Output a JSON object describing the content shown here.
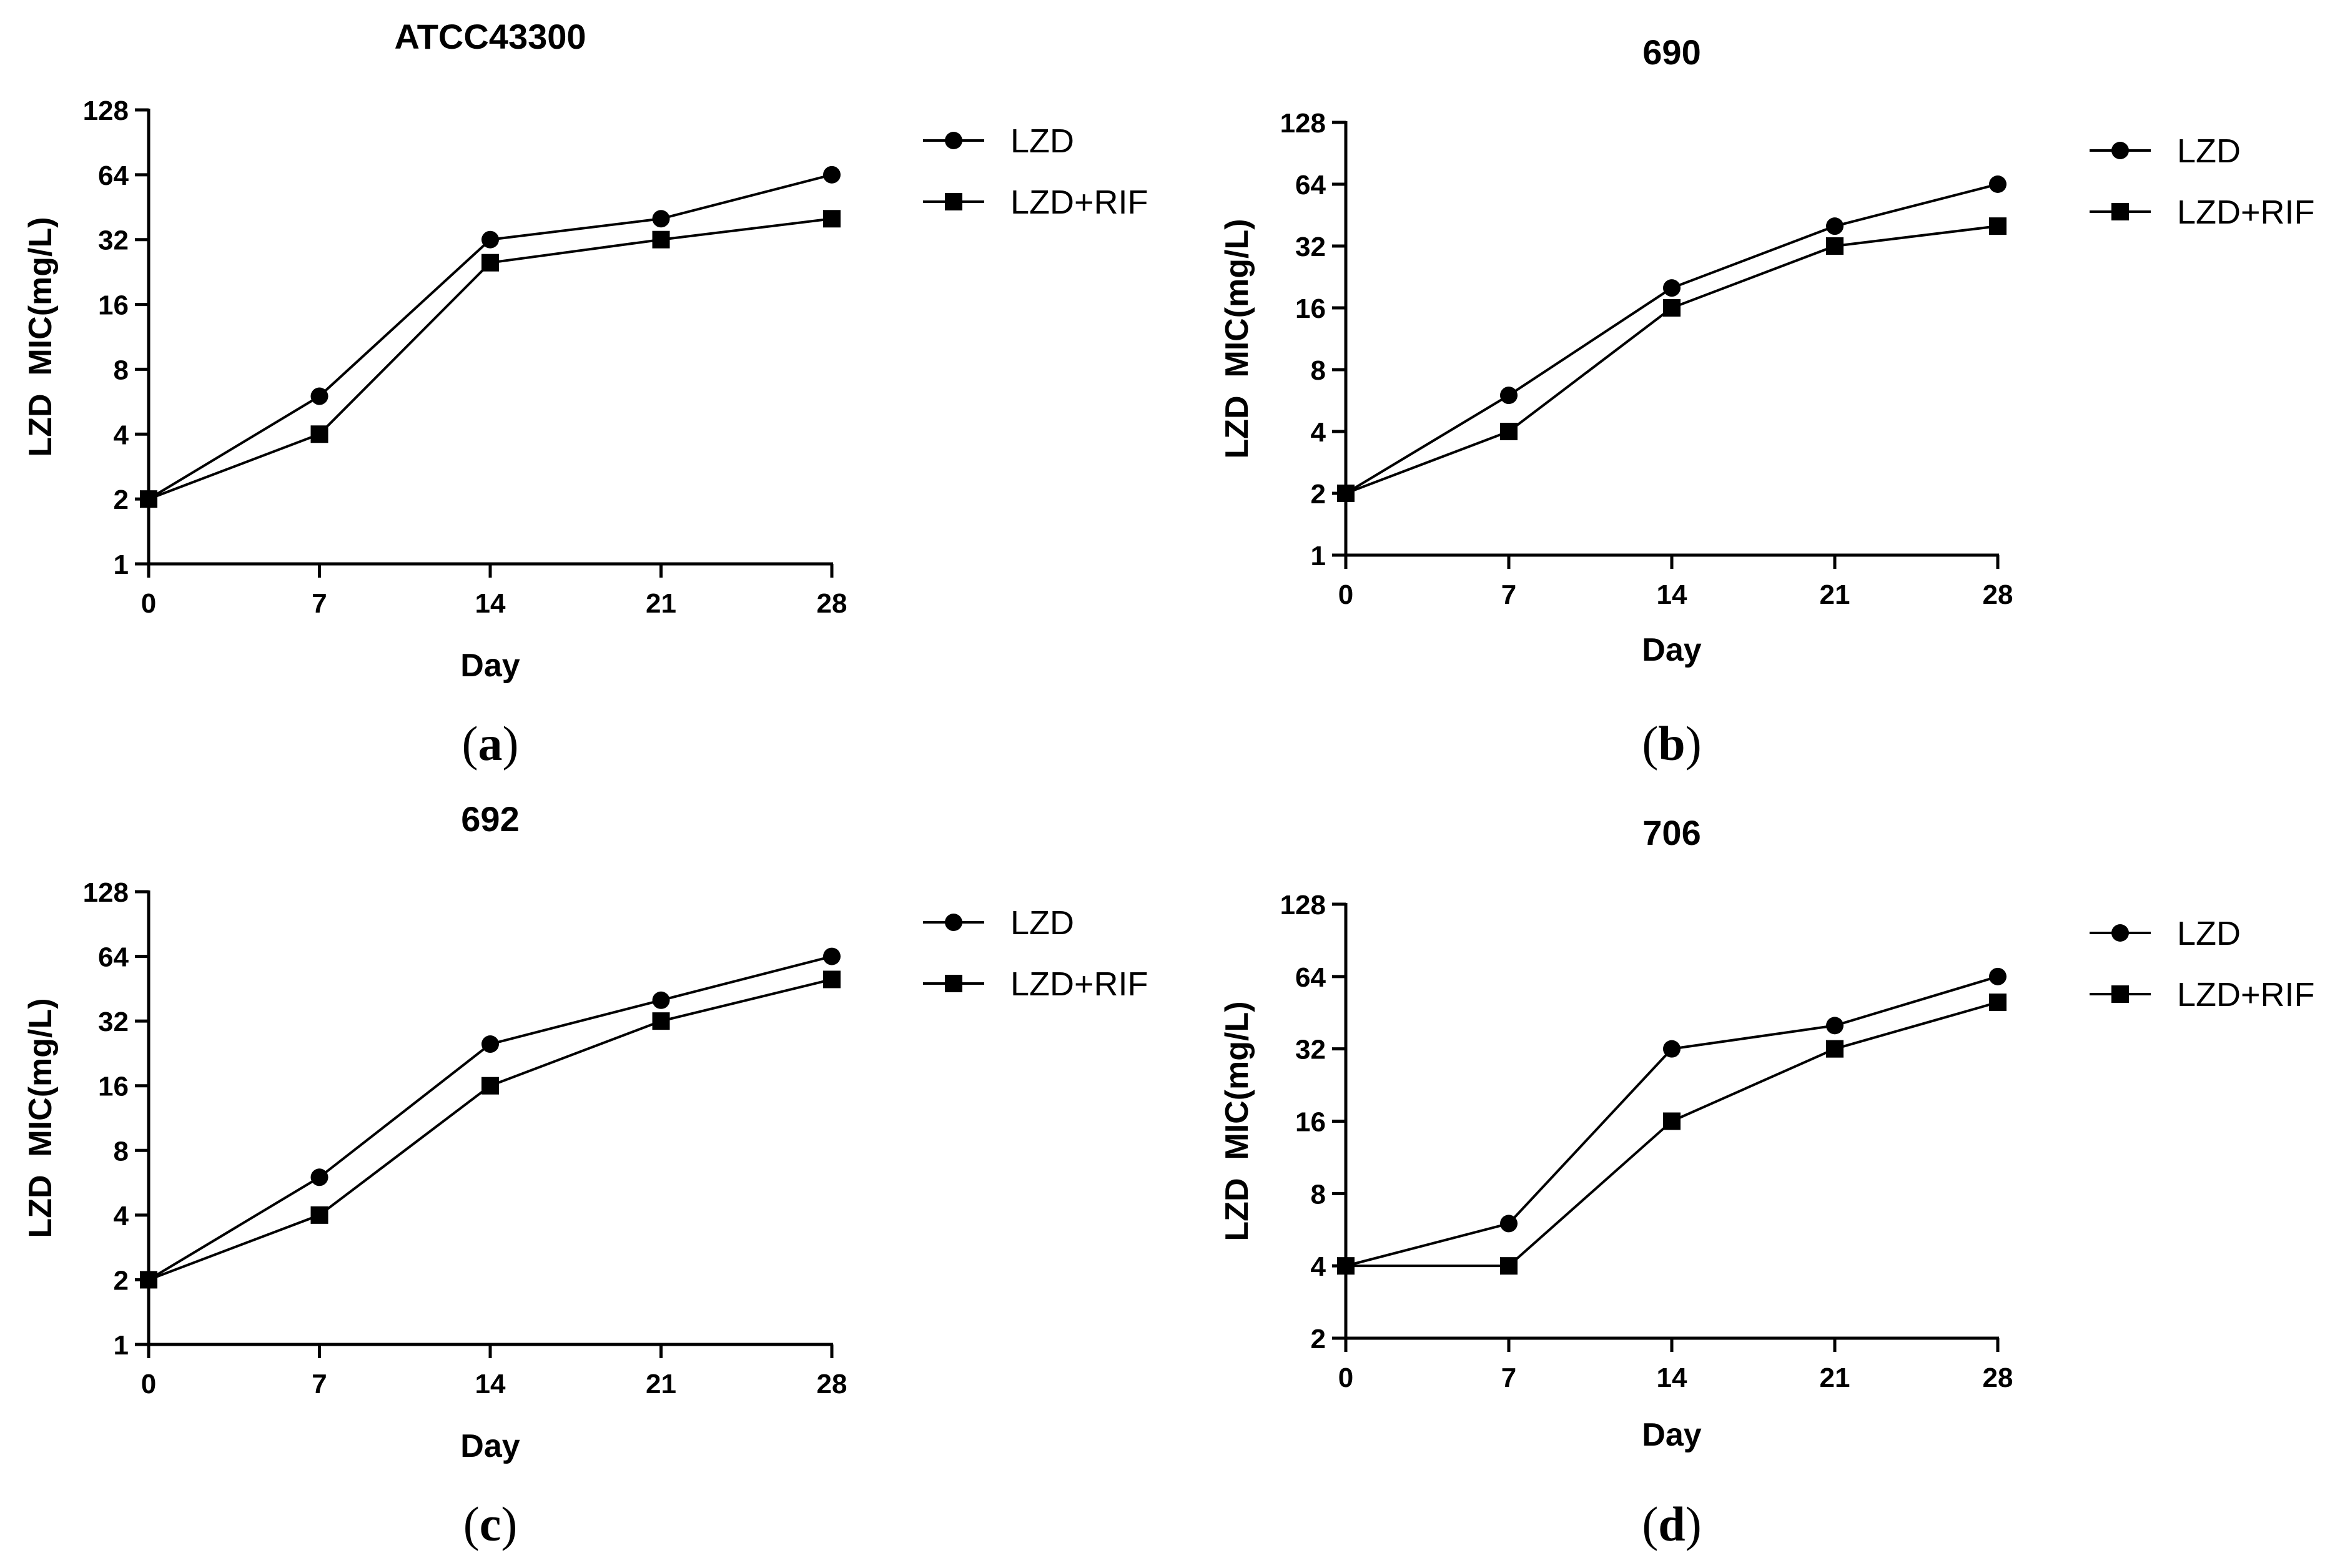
{
  "chart_data": [
    {
      "type": "line",
      "panel": "(a)",
      "title": "ATCC43300",
      "xlabel": "Day",
      "ylabel": "LZD  MIC(mg/L)",
      "x": [
        0,
        7,
        14,
        21,
        28
      ],
      "xticks": [
        "0",
        "7",
        "14",
        "21",
        "28"
      ],
      "xlim": [
        0,
        28
      ],
      "yscale": "log2",
      "yticks": [
        "1",
        "2",
        "4",
        "8",
        "16",
        "32",
        "64",
        "128"
      ],
      "ylim": [
        1,
        128
      ],
      "legend": "top-right",
      "series": [
        {
          "name": "LZD",
          "marker": "circle",
          "values": [
            2,
            6,
            32,
            40,
            64
          ]
        },
        {
          "name": "LZD+RIF",
          "marker": "square",
          "values": [
            2,
            4,
            25,
            32,
            40
          ]
        }
      ]
    },
    {
      "type": "line",
      "panel": "(b)",
      "title": "690",
      "xlabel": "Day",
      "ylabel": "LZD  MIC(mg/L)",
      "x": [
        0,
        7,
        14,
        21,
        28
      ],
      "xticks": [
        "0",
        "7",
        "14",
        "21",
        "28"
      ],
      "xlim": [
        0,
        28
      ],
      "yscale": "log2",
      "yticks": [
        "1",
        "2",
        "4",
        "8",
        "16",
        "32",
        "64",
        "128"
      ],
      "ylim": [
        1,
        128
      ],
      "legend": "top-right",
      "series": [
        {
          "name": "LZD",
          "marker": "circle",
          "values": [
            2,
            6,
            20,
            40,
            64
          ]
        },
        {
          "name": "LZD+RIF",
          "marker": "square",
          "values": [
            2,
            4,
            16,
            32,
            40
          ]
        }
      ]
    },
    {
      "type": "line",
      "panel": "(c)",
      "title": "692",
      "xlabel": "Day",
      "ylabel": "LZD  MIC(mg/L)",
      "x": [
        0,
        7,
        14,
        21,
        28
      ],
      "xticks": [
        "0",
        "7",
        "14",
        "21",
        "28"
      ],
      "xlim": [
        0,
        28
      ],
      "yscale": "log2",
      "yticks": [
        "1",
        "2",
        "4",
        "8",
        "16",
        "32",
        "64",
        "128"
      ],
      "ylim": [
        1,
        128
      ],
      "legend": "top-right",
      "series": [
        {
          "name": "LZD",
          "marker": "circle",
          "values": [
            2,
            6,
            25,
            40,
            64
          ]
        },
        {
          "name": "LZD+RIF",
          "marker": "square",
          "values": [
            2,
            4,
            16,
            32,
            50
          ]
        }
      ]
    },
    {
      "type": "line",
      "panel": "(d)",
      "title": "706",
      "xlabel": "Day",
      "ylabel": "LZD  MIC(mg/L)",
      "x": [
        0,
        7,
        14,
        21,
        28
      ],
      "xticks": [
        "0",
        "7",
        "14",
        "21",
        "28"
      ],
      "xlim": [
        0,
        28
      ],
      "yscale": "log2",
      "yticks": [
        "2",
        "4",
        "8",
        "16",
        "32",
        "64",
        "128"
      ],
      "ylim": [
        2,
        128
      ],
      "legend": "top-right",
      "series": [
        {
          "name": "LZD",
          "marker": "circle",
          "values": [
            4,
            6,
            32,
            40,
            64
          ]
        },
        {
          "name": "LZD+RIF",
          "marker": "square",
          "values": [
            4,
            4,
            16,
            32,
            50
          ]
        }
      ]
    }
  ]
}
